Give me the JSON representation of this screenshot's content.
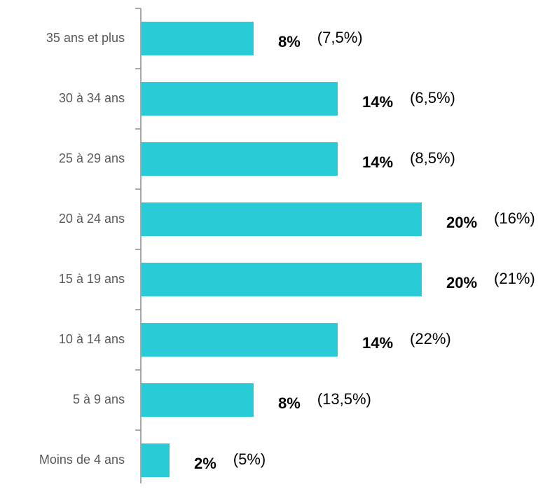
{
  "chart_data": {
    "type": "hbar",
    "categories": [
      "35 ans et plus",
      "30 à 34 ans",
      "25 à 29 ans",
      "20 à 24 ans",
      "15 à 19 ans",
      "10 à 14 ans",
      "5 à 9 ans",
      "Moins de 4 ans"
    ],
    "values": [
      8,
      14,
      14,
      20,
      20,
      14,
      8,
      2
    ],
    "value_labels": [
      "8%",
      "14%",
      "14%",
      "20%",
      "20%",
      "14%",
      "8%",
      "2%"
    ],
    "annotations": [
      "(7,5%)",
      "(6,5%)",
      "(8,5%)",
      "(16%)",
      "(21%)",
      "(22%)",
      "(13,5%)",
      "(5%)"
    ],
    "color": "#29ccd6",
    "xlim": [
      0,
      20
    ]
  }
}
